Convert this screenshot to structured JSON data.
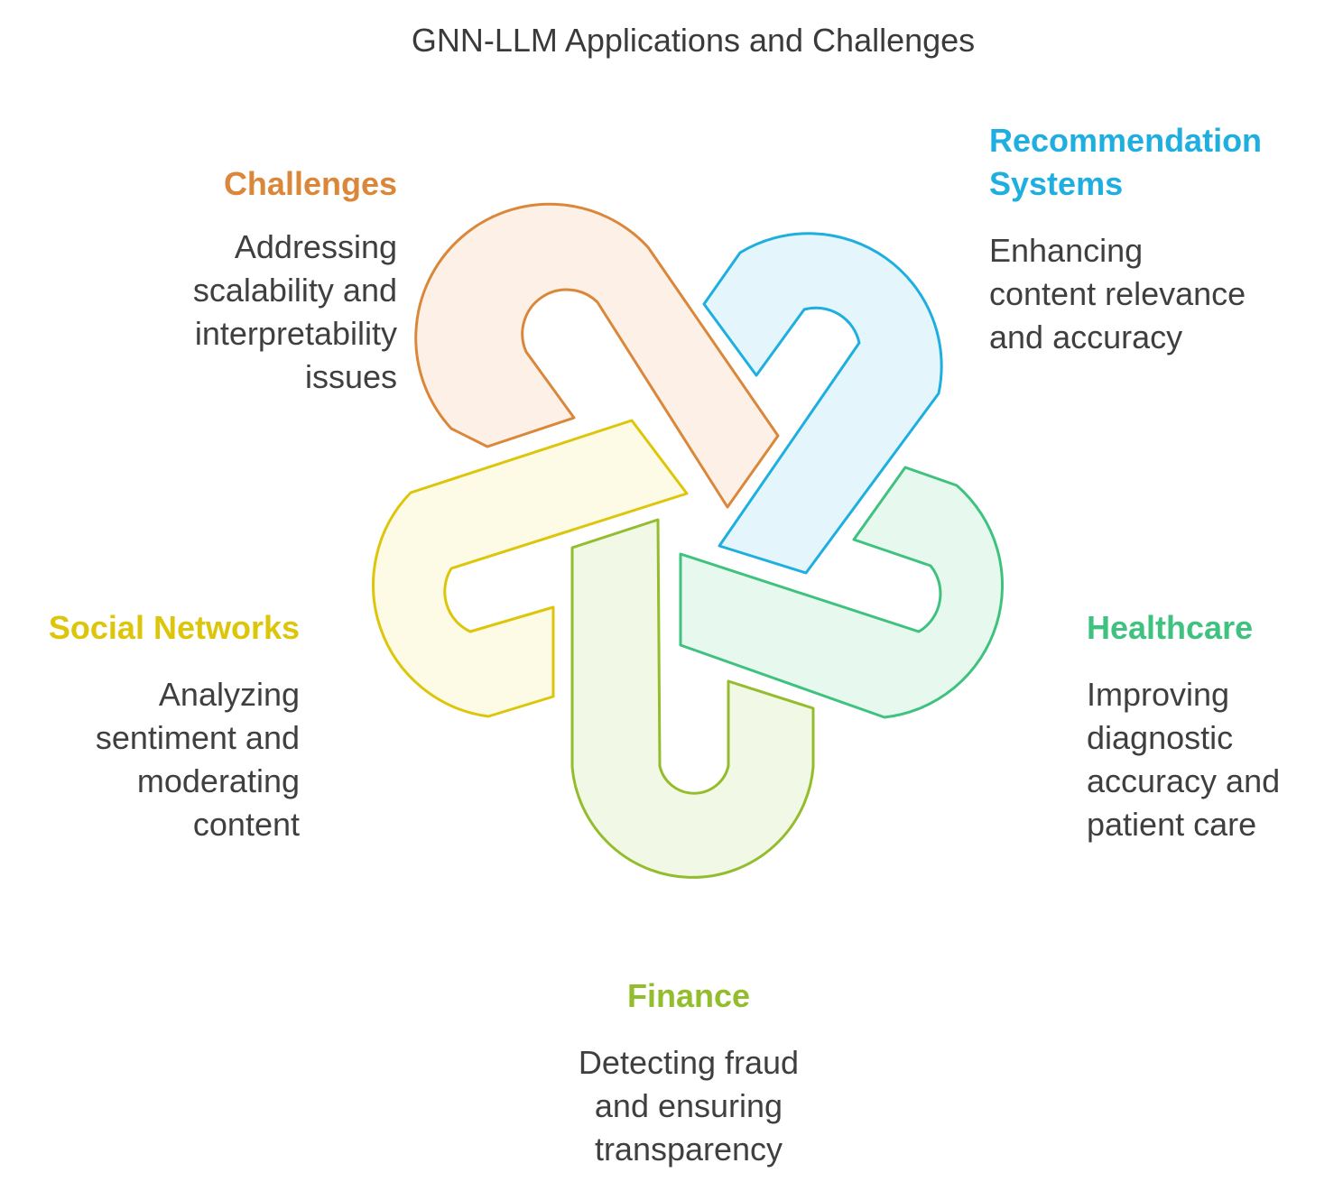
{
  "title": "GNN-LLM Applications and Challenges",
  "colors": {
    "challenges": "#db873a",
    "recommendation": "#1eaee0",
    "healthcare": "#3fc27f",
    "finance": "#93bd2c",
    "social": "#ddc60a"
  },
  "sections": {
    "challenges": {
      "heading": "Challenges",
      "lines": [
        "Addressing",
        "scalability and",
        "interpretability",
        "issues"
      ]
    },
    "recommendation": {
      "heading_lines": [
        "Recommendation",
        "Systems"
      ],
      "lines": [
        "Enhancing",
        "content relevance",
        "and accuracy"
      ]
    },
    "social": {
      "heading": "Social Networks",
      "lines": [
        "Analyzing",
        "sentiment and",
        "moderating",
        "content"
      ]
    },
    "healthcare": {
      "heading": "Healthcare",
      "lines": [
        "Improving",
        "diagnostic",
        "accuracy and",
        "patient care"
      ]
    },
    "finance": {
      "heading": "Finance",
      "lines": [
        "Detecting fraud",
        "and ensuring",
        "transparency"
      ]
    }
  }
}
